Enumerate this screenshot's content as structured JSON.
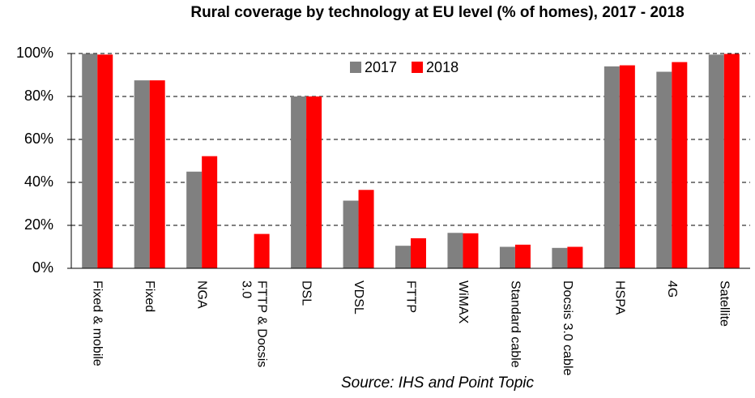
{
  "chart_data": {
    "type": "bar",
    "title": "Rural coverage by technology at EU level (% of homes), 2017 - 2018",
    "source": "Source: IHS and Point Topic",
    "categories": [
      "Fixed & mobile",
      "Fixed",
      "NGA",
      "FTTP & Docsis 3.0",
      "DSL",
      "VDSL",
      "FTTP",
      "WiMAX",
      "Standard cable",
      "Docsis 3.0 cable",
      "HSPA",
      "4G",
      "Satellite"
    ],
    "series": [
      {
        "name": "2017",
        "color": "#808080",
        "values": [
          99.9,
          87.5,
          45,
          null,
          80,
          31.5,
          10.5,
          16.5,
          10,
          9.5,
          94,
          91.5,
          99.5
        ]
      },
      {
        "name": "2018",
        "color": "#ff0000",
        "values": [
          99.5,
          87.5,
          52.2,
          16,
          80,
          36.5,
          14,
          16.3,
          11,
          10,
          94.5,
          96,
          99.8
        ]
      }
    ],
    "ylim": [
      0,
      100
    ],
    "yticks": [
      {
        "value": 0,
        "label": "0%"
      },
      {
        "value": 20,
        "label": "20%"
      },
      {
        "value": 40,
        "label": "40%"
      },
      {
        "value": 60,
        "label": "60%"
      },
      {
        "value": 80,
        "label": "80%"
      },
      {
        "value": 100,
        "label": "100%"
      }
    ],
    "grid": true
  }
}
